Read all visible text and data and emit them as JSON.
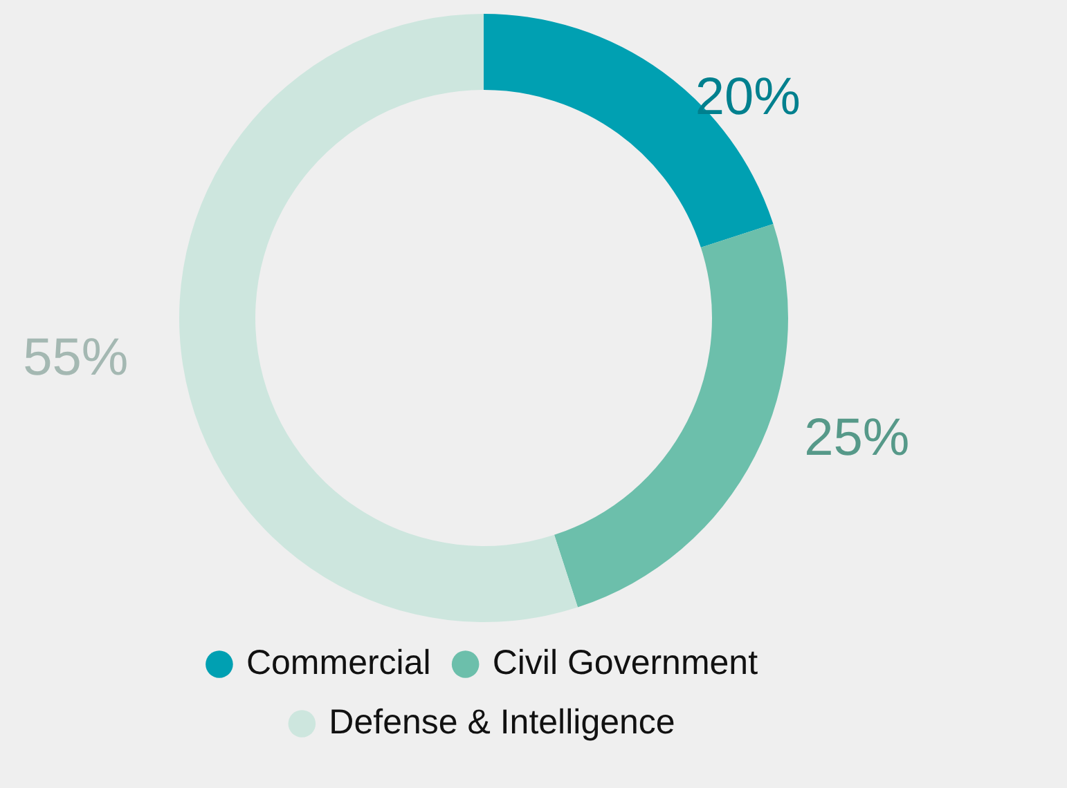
{
  "chart_data": {
    "type": "donut",
    "categories": [
      "Commercial",
      "Civil Government",
      "Defense & Intelligence"
    ],
    "values": [
      20,
      25,
      55
    ],
    "colors": [
      "#00a0b2",
      "#6cbfab",
      "#cde6de"
    ],
    "value_labels": [
      "20%",
      "25%",
      "55%"
    ],
    "legend": "bottom"
  }
}
